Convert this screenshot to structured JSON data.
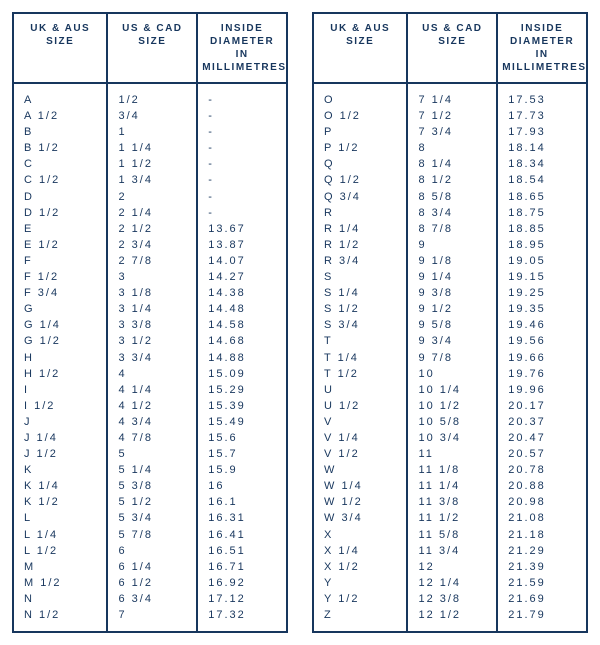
{
  "headers": {
    "uk": "UK & AUS\nSIZE",
    "us": "US & CAD\nSIZE",
    "dia": "INSIDE\nDIAMETER IN\nMILLIMETRES"
  },
  "left": {
    "uk": [
      "A",
      "A 1/2",
      "B",
      "B 1/2",
      "C",
      "C 1/2",
      "D",
      "D 1/2",
      "E",
      "E 1/2",
      "F",
      "F 1/2",
      "F 3/4",
      "G",
      "G 1/4",
      "G 1/2",
      "H",
      "H 1/2",
      "I",
      "I 1/2",
      "J",
      "J 1/4",
      "J 1/2",
      "K",
      "K 1/4",
      "K 1/2",
      "L",
      "L 1/4",
      "L 1/2",
      "M",
      "M 1/2",
      "N",
      "N 1/2"
    ],
    "us": [
      "1/2",
      "3/4",
      "1",
      "1 1/4",
      "1 1/2",
      "1 3/4",
      "2",
      "2 1/4",
      "2 1/2",
      "2 3/4",
      "2 7/8",
      "3",
      "3 1/8",
      "3 1/4",
      "3 3/8",
      "3 1/2",
      "3 3/4",
      "4",
      "4 1/4",
      "4 1/2",
      "4 3/4",
      "4 7/8",
      "5",
      "5 1/4",
      "5 3/8",
      "5 1/2",
      "5 3/4",
      "5 7/8",
      "6",
      "6 1/4",
      "6 1/2",
      "6 3/4",
      "7"
    ],
    "dia": [
      "-",
      "-",
      "-",
      "-",
      "-",
      "-",
      "-",
      "-",
      "13.67",
      "13.87",
      "14.07",
      "14.27",
      "14.38",
      "14.48",
      "14.58",
      "14.68",
      "14.88",
      "15.09",
      "15.29",
      "15.39",
      "15.49",
      "15.6",
      "15.7",
      "15.9",
      "16",
      "16.1",
      "16.31",
      "16.41",
      "16.51",
      "16.71",
      "16.92",
      "17.12",
      "17.32"
    ]
  },
  "right": {
    "uk": [
      "O",
      "O 1/2",
      "P",
      "P 1/2",
      "Q",
      "Q 1/2",
      "Q 3/4",
      "R",
      "R 1/4",
      "R 1/2",
      "R 3/4",
      "S",
      "S 1/4",
      "S 1/2",
      "S 3/4",
      "T",
      "T 1/4",
      "T 1/2",
      "U",
      "U 1/2",
      "V",
      "V 1/4",
      "V 1/2",
      "W",
      "W 1/4",
      "W 1/2",
      "W 3/4",
      "X",
      "X 1/4",
      "X 1/2",
      "Y",
      "Y 1/2",
      "Z"
    ],
    "us": [
      "7 1/4",
      "7 1/2",
      "7 3/4",
      "8",
      "8 1/4",
      "8 1/2",
      "8 5/8",
      "8 3/4",
      "8 7/8",
      "9",
      "9 1/8",
      "9 1/4",
      "9 3/8",
      "9 1/2",
      "9 5/8",
      "9 3/4",
      "9 7/8",
      "10",
      "10 1/4",
      "10 1/2",
      "10 5/8",
      "10 3/4",
      "11",
      "11 1/8",
      "11 1/4",
      "11 3/8",
      "11 1/2",
      "11 5/8",
      "11 3/4",
      "12",
      "12 1/4",
      "12 3/8",
      "12 1/2"
    ],
    "dia": [
      "17.53",
      "17.73",
      "17.93",
      "18.14",
      "18.34",
      "18.54",
      "18.65",
      "18.75",
      "18.85",
      "18.95",
      "19.05",
      "19.15",
      "19.25",
      "19.35",
      "19.46",
      "19.56",
      "19.66",
      "19.76",
      "19.96",
      "20.17",
      "20.37",
      "20.47",
      "20.57",
      "20.78",
      "20.88",
      "20.98",
      "21.08",
      "21.18",
      "21.29",
      "21.39",
      "21.59",
      "21.69",
      "21.79"
    ]
  }
}
